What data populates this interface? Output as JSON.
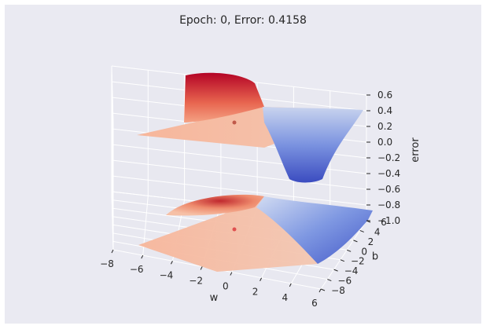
{
  "chart_data": {
    "type": "surface3d",
    "title": "Epoch:  0, Error: 0.4158",
    "xlabel": "w",
    "ylabel": "b",
    "zlabel": "error",
    "x_ticks": [
      "−8",
      "−6",
      "−4",
      "−2",
      "0",
      "2",
      "4",
      "6"
    ],
    "y_ticks": [
      "−8",
      "−6",
      "−4",
      "−2",
      "0",
      "2",
      "4",
      "6"
    ],
    "z_ticks": [
      "0.6",
      "0.4",
      "0.2",
      "0.0",
      "−0.2",
      "−0.4",
      "−0.6",
      "−0.8",
      "−1.0"
    ],
    "xlim": [
      -8,
      6
    ],
    "ylim": [
      -8,
      6
    ],
    "zlim": [
      -1.0,
      0.6
    ],
    "colormap": "coolwarm",
    "grid": true,
    "current_point": {
      "w": 0,
      "b": 0,
      "error": 0.4158
    }
  },
  "colors": {
    "background": "#eaeaf2",
    "pane": "#e8e8f0",
    "grid": "#ffffff",
    "high": "#b40426",
    "mid": "#f7b69b",
    "low": "#3b4cc0",
    "point": "#e05050"
  }
}
